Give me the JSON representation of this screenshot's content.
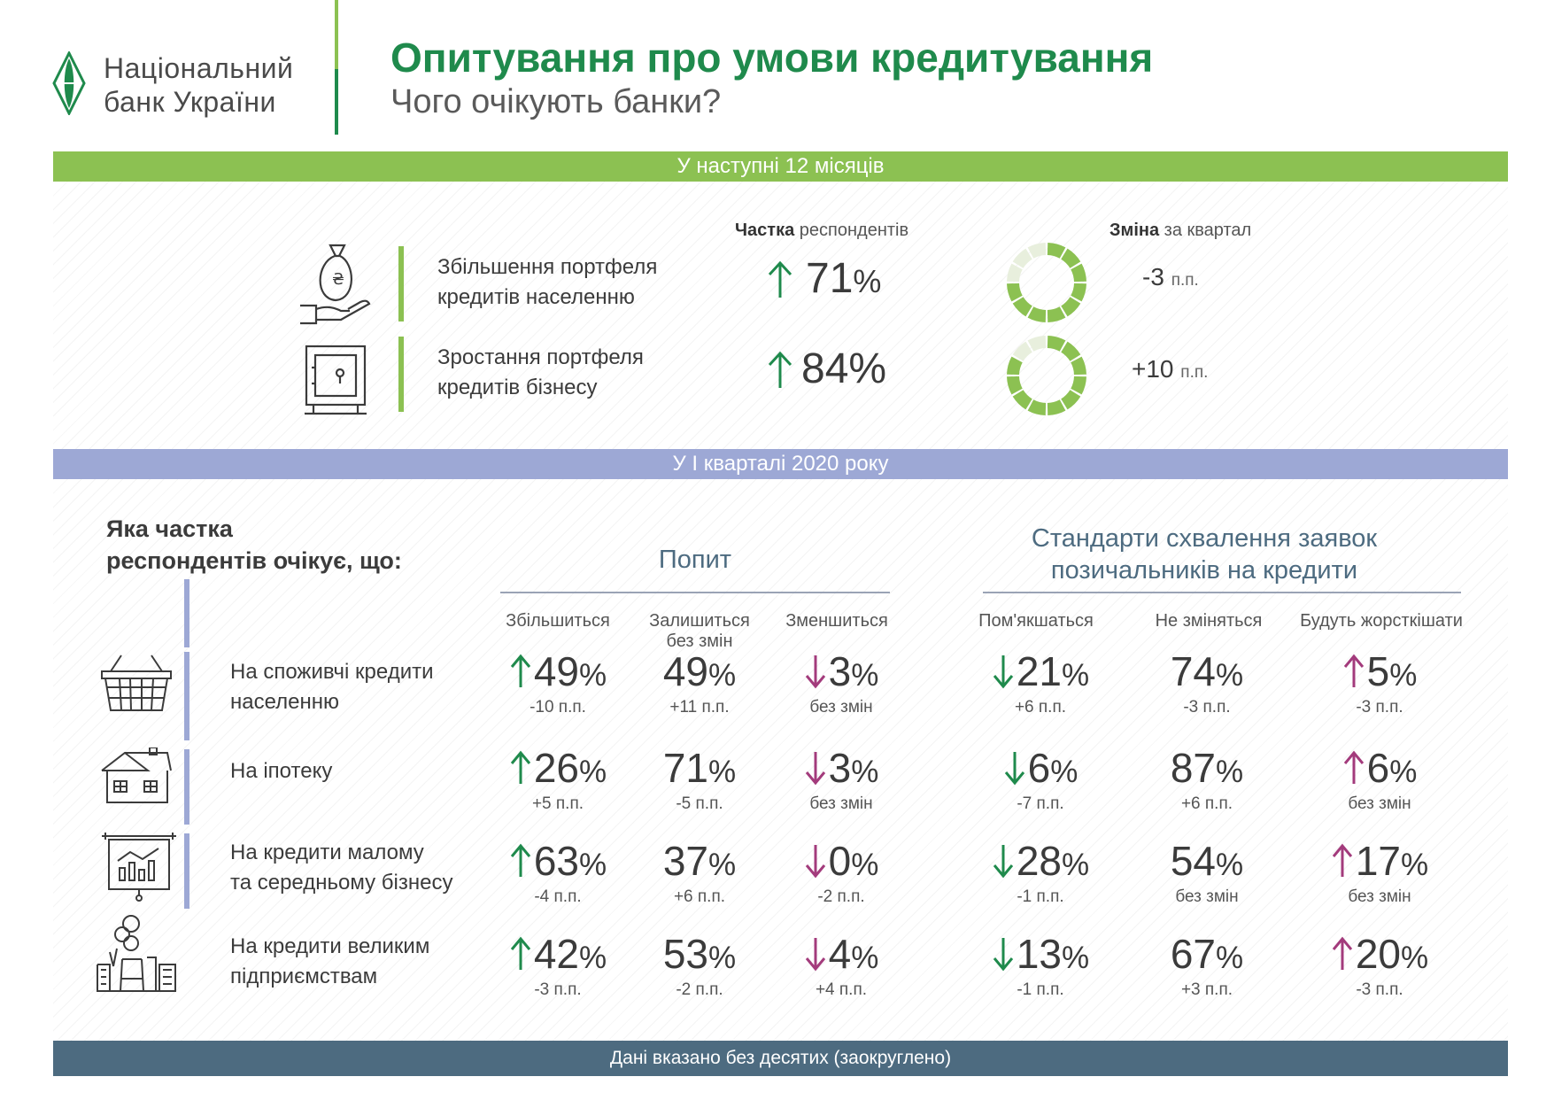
{
  "header": {
    "bank_name_line1": "Національний",
    "bank_name_line2": "банк України",
    "title": "Опитування про умови кредитування",
    "subtitle": "Чого очікують банки?"
  },
  "colors": {
    "green": "#1f8a4c",
    "light_green": "#8cc152",
    "lavender": "#9da8d5",
    "slate": "#4d6b80",
    "magenta": "#a33b7c"
  },
  "section_12m": {
    "banner": "У наступні 12 місяців",
    "col_share_bold": "Частка",
    "col_share_rest": " респондентів",
    "col_change_bold": "Зміна",
    "col_change_rest": " за квартал",
    "rows": [
      {
        "icon": "money-bag-hand-icon",
        "label_line1": "Збільшення портфеля",
        "label_line2": "кредитів населенню",
        "value": "71",
        "pct": "%",
        "change": "-3",
        "unit": "п.п.",
        "share": 0.71
      },
      {
        "icon": "safe-icon",
        "label_line1": "Зростання портфеля",
        "label_line2": "кредитів бізнесу",
        "value": "84",
        "pct": "%",
        "change": "+10",
        "unit": "п.п.",
        "share": 0.84
      }
    ]
  },
  "section_q1": {
    "banner": "У І кварталі 2020 року",
    "question_line1": "Яка частка",
    "question_line2": "респондентів очікує, що:",
    "demand_title": "Попит",
    "standards_title_line1": "Стандарти схвалення заявок",
    "standards_title_line2": "позичальників на кредити",
    "demand_cols": [
      "Збільшиться",
      "Залишиться",
      "Зменшиться"
    ],
    "demand_col2_line2": "без змін",
    "standards_cols": [
      "Пом'якшаться",
      "Не зміняться",
      "Будуть жорсткішати"
    ],
    "rows": [
      {
        "icon": "shopping-basket-icon",
        "label_line1": "На споживчі кредити",
        "label_line2": "населенню",
        "cells": [
          {
            "v": "49",
            "d": "-10 п.п.",
            "arrow": "up-green"
          },
          {
            "v": "49",
            "d": "+11 п.п.",
            "arrow": "none"
          },
          {
            "v": "3",
            "d": "без змін",
            "arrow": "down-magenta"
          },
          {
            "v": "21",
            "d": "+6 п.п.",
            "arrow": "down-green"
          },
          {
            "v": "74",
            "d": "-3 п.п.",
            "arrow": "none"
          },
          {
            "v": "5",
            "d": "-3 п.п.",
            "arrow": "up-magenta"
          }
        ]
      },
      {
        "icon": "house-icon",
        "label_line1": "На іпотеку",
        "label_line2": "",
        "cells": [
          {
            "v": "26",
            "d": "+5 п.п.",
            "arrow": "up-green"
          },
          {
            "v": "71",
            "d": "-5 п.п.",
            "arrow": "none"
          },
          {
            "v": "3",
            "d": "без змін",
            "arrow": "down-magenta"
          },
          {
            "v": "6",
            "d": "-7 п.п.",
            "arrow": "down-green"
          },
          {
            "v": "87",
            "d": "+6 п.п.",
            "arrow": "none"
          },
          {
            "v": "6",
            "d": "без змін",
            "arrow": "up-magenta"
          }
        ]
      },
      {
        "icon": "presentation-chart-icon",
        "label_line1": "На кредити малому",
        "label_line2": "та середньому бізнесу",
        "cells": [
          {
            "v": "63",
            "d": "-4 п.п.",
            "arrow": "up-green"
          },
          {
            "v": "37",
            "d": "+6 п.п.",
            "arrow": "none"
          },
          {
            "v": "0",
            "d": "-2 п.п.",
            "arrow": "down-magenta"
          },
          {
            "v": "28",
            "d": "-1 п.п.",
            "arrow": "down-green"
          },
          {
            "v": "54",
            "d": "без змін",
            "arrow": "none"
          },
          {
            "v": "17",
            "d": "без змін",
            "arrow": "up-magenta"
          }
        ]
      },
      {
        "icon": "factory-icon",
        "label_line1": "На кредити великим",
        "label_line2": "підприємствам",
        "cells": [
          {
            "v": "42",
            "d": "-3 п.п.",
            "arrow": "up-green"
          },
          {
            "v": "53",
            "d": "-2 п.п.",
            "arrow": "none"
          },
          {
            "v": "4",
            "d": "+4 п.п.",
            "arrow": "down-magenta"
          },
          {
            "v": "13",
            "d": "-1 п.п.",
            "arrow": "down-green"
          },
          {
            "v": "67",
            "d": "+3 п.п.",
            "arrow": "none"
          },
          {
            "v": "20",
            "d": "-3 п.п.",
            "arrow": "up-magenta"
          }
        ]
      }
    ]
  },
  "footer": {
    "note": "Дані вказано без десятих (заокруглено)"
  }
}
